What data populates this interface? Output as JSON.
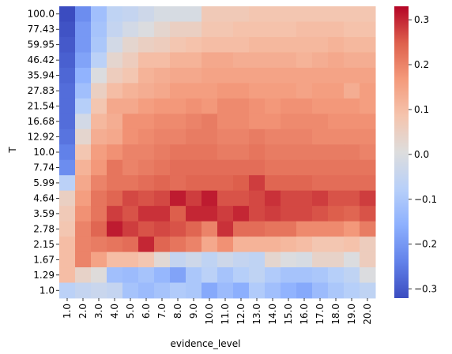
{
  "chart_data": {
    "type": "heatmap",
    "title": "",
    "xlabel": "evidence_level",
    "ylabel": "T",
    "x_categories": [
      "1.0",
      "2.0",
      "3.0",
      "4.0",
      "5.0",
      "6.0",
      "7.0",
      "8.0",
      "9.0",
      "10.0",
      "11.0",
      "12.0",
      "13.0",
      "14.0",
      "15.0",
      "16.0",
      "17.0",
      "18.0",
      "19.0",
      "20.0"
    ],
    "y_categories": [
      "100.0",
      "77.43",
      "59.95",
      "46.42",
      "35.94",
      "27.83",
      "21.54",
      "16.68",
      "12.92",
      "10.0",
      "7.74",
      "5.99",
      "4.64",
      "3.59",
      "2.78",
      "2.15",
      "1.67",
      "1.29",
      "1.0"
    ],
    "colormap": "coolwarm",
    "vmin": -0.32,
    "vmax": 0.33,
    "colorbar_ticks": [
      0.3,
      0.2,
      0.1,
      0.0,
      -0.1,
      -0.2,
      -0.3
    ],
    "colorbar_tick_labels": [
      "0.3",
      "0.2",
      "0.1",
      "0.0",
      "−0.1",
      "−0.2",
      "−0.3"
    ],
    "values": [
      [
        -0.32,
        -0.22,
        -0.12,
        -0.06,
        -0.05,
        -0.03,
        -0.01,
        -0.01,
        -0.01,
        0.07,
        0.07,
        0.07,
        0.08,
        0.08,
        0.08,
        0.08,
        0.08,
        0.08,
        0.08,
        0.08
      ],
      [
        -0.31,
        -0.2,
        -0.11,
        -0.05,
        -0.02,
        0.0,
        0.03,
        0.05,
        0.05,
        0.08,
        0.08,
        0.09,
        0.09,
        0.09,
        0.09,
        0.1,
        0.1,
        0.1,
        0.09,
        0.09
      ],
      [
        -0.3,
        -0.2,
        -0.1,
        -0.02,
        0.03,
        0.05,
        0.06,
        0.08,
        0.09,
        0.1,
        0.1,
        0.1,
        0.11,
        0.11,
        0.11,
        0.11,
        0.11,
        0.12,
        0.11,
        0.11
      ],
      [
        -0.29,
        -0.18,
        -0.07,
        0.03,
        0.06,
        0.1,
        0.1,
        0.12,
        0.12,
        0.14,
        0.14,
        0.13,
        0.13,
        0.13,
        0.13,
        0.12,
        0.13,
        0.14,
        0.13,
        0.13
      ],
      [
        -0.28,
        -0.15,
        0.0,
        0.06,
        0.08,
        0.12,
        0.13,
        0.14,
        0.14,
        0.15,
        0.15,
        0.15,
        0.15,
        0.15,
        0.15,
        0.15,
        0.15,
        0.15,
        0.15,
        0.15
      ],
      [
        -0.27,
        -0.12,
        0.05,
        0.1,
        0.12,
        0.13,
        0.14,
        0.16,
        0.16,
        0.16,
        0.17,
        0.17,
        0.16,
        0.16,
        0.16,
        0.15,
        0.16,
        0.16,
        0.13,
        0.16
      ],
      [
        -0.27,
        -0.08,
        0.08,
        0.14,
        0.14,
        0.16,
        0.17,
        0.17,
        0.18,
        0.17,
        0.19,
        0.19,
        0.18,
        0.17,
        0.18,
        0.18,
        0.17,
        0.17,
        0.17,
        0.16
      ],
      [
        -0.27,
        -0.02,
        0.11,
        0.13,
        0.18,
        0.18,
        0.19,
        0.19,
        0.2,
        0.21,
        0.19,
        0.19,
        0.18,
        0.18,
        0.19,
        0.19,
        0.19,
        0.18,
        0.18,
        0.18
      ],
      [
        -0.26,
        0.03,
        0.13,
        0.14,
        0.18,
        0.19,
        0.2,
        0.2,
        0.21,
        0.21,
        0.2,
        0.2,
        0.21,
        0.2,
        0.2,
        0.2,
        0.19,
        0.19,
        0.19,
        0.19
      ],
      [
        -0.24,
        0.08,
        0.16,
        0.18,
        0.2,
        0.2,
        0.21,
        0.22,
        0.22,
        0.22,
        0.21,
        0.21,
        0.22,
        0.21,
        0.21,
        0.21,
        0.21,
        0.21,
        0.21,
        0.2
      ],
      [
        -0.22,
        0.12,
        0.17,
        0.22,
        0.2,
        0.21,
        0.22,
        0.23,
        0.23,
        0.23,
        0.23,
        0.23,
        0.23,
        0.22,
        0.22,
        0.22,
        0.22,
        0.22,
        0.22,
        0.22
      ],
      [
        -0.07,
        0.14,
        0.2,
        0.22,
        0.22,
        0.23,
        0.24,
        0.23,
        0.24,
        0.24,
        0.24,
        0.25,
        0.28,
        0.24,
        0.24,
        0.24,
        0.23,
        0.23,
        0.23,
        0.23
      ],
      [
        0.05,
        0.16,
        0.22,
        0.24,
        0.27,
        0.26,
        0.27,
        0.31,
        0.28,
        0.31,
        0.26,
        0.26,
        0.27,
        0.29,
        0.27,
        0.27,
        0.28,
        0.26,
        0.26,
        0.28
      ],
      [
        0.07,
        0.18,
        0.22,
        0.28,
        0.26,
        0.29,
        0.29,
        0.25,
        0.3,
        0.3,
        0.28,
        0.3,
        0.27,
        0.28,
        0.27,
        0.27,
        0.26,
        0.25,
        0.24,
        0.26
      ],
      [
        0.08,
        0.2,
        0.24,
        0.31,
        0.28,
        0.26,
        0.27,
        0.26,
        0.24,
        0.2,
        0.29,
        0.23,
        0.23,
        0.22,
        0.22,
        0.19,
        0.19,
        0.19,
        0.17,
        0.21
      ],
      [
        0.1,
        0.2,
        0.21,
        0.22,
        0.23,
        0.3,
        0.24,
        0.22,
        0.2,
        0.14,
        0.18,
        0.12,
        0.12,
        0.12,
        0.11,
        0.1,
        0.08,
        0.08,
        0.09,
        0.06
      ],
      [
        0.1,
        0.2,
        0.15,
        0.1,
        0.1,
        0.08,
        0.02,
        -0.05,
        -0.03,
        -0.06,
        -0.03,
        -0.05,
        -0.06,
        0.03,
        0.0,
        -0.01,
        0.04,
        0.04,
        0.0,
        0.06
      ],
      [
        0.1,
        0.04,
        0.01,
        -0.12,
        -0.13,
        -0.11,
        -0.14,
        -0.18,
        -0.1,
        -0.07,
        -0.11,
        -0.08,
        -0.06,
        -0.09,
        -0.11,
        -0.11,
        -0.1,
        -0.08,
        -0.06,
        0.0
      ],
      [
        -0.07,
        -0.05,
        -0.04,
        -0.05,
        -0.11,
        -0.13,
        -0.11,
        -0.09,
        -0.1,
        -0.17,
        -0.13,
        -0.16,
        -0.09,
        -0.12,
        -0.15,
        -0.17,
        -0.13,
        -0.1,
        -0.08,
        -0.06
      ]
    ]
  }
}
